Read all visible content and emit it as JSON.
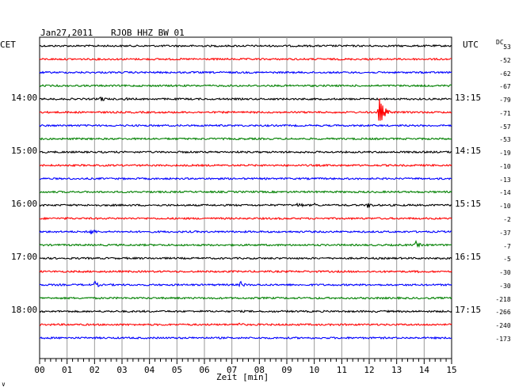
{
  "header": {
    "date": "Jan27,2011",
    "station": "RJOB HHZ BW 01",
    "left_tz": "CET",
    "right_tz": "UTC",
    "dc_label": "DC"
  },
  "footer": {
    "marker": "∨"
  },
  "chart_data": {
    "type": "line",
    "title": "",
    "xlabel": "Zeit [min]",
    "ylabel": "",
    "xlim": [
      0,
      15
    ],
    "x_ticks": [
      "00",
      "01",
      "02",
      "03",
      "04",
      "05",
      "06",
      "07",
      "08",
      "09",
      "10",
      "11",
      "12",
      "13",
      "14",
      "15"
    ],
    "grid": true,
    "trace_colors": [
      "#000000",
      "#ff0000",
      "#0000ff",
      "#008000"
    ],
    "left_hour_labels": [
      {
        "trace": 4,
        "label": "14:00"
      },
      {
        "trace": 8,
        "label": "15:00"
      },
      {
        "trace": 12,
        "label": "16:00"
      },
      {
        "trace": 16,
        "label": "17:00"
      },
      {
        "trace": 20,
        "label": "18:00"
      }
    ],
    "right_hour_labels": [
      {
        "trace": 4,
        "label": "13:15"
      },
      {
        "trace": 8,
        "label": "14:15"
      },
      {
        "trace": 12,
        "label": "15:15"
      },
      {
        "trace": 16,
        "label": "16:15"
      },
      {
        "trace": 20,
        "label": "17:15"
      }
    ],
    "dc_offsets": [
      "53",
      "-52",
      "-62",
      "-67",
      "-79",
      "-71",
      "-57",
      "-53",
      "-19",
      "-10",
      "-13",
      "-14",
      "-10",
      "-2",
      "-37",
      "-7",
      "-5",
      "-30",
      "-30",
      "-218",
      "-266",
      "-240",
      "-173"
    ],
    "events": [
      {
        "trace": 4,
        "minute": 2.2,
        "amplitude": 5
      },
      {
        "trace": 4,
        "minute": 3.1,
        "amplitude": 3
      },
      {
        "trace": 5,
        "minute": 12.35,
        "amplitude": 22
      },
      {
        "trace": 8,
        "minute": 1.8,
        "amplitude": 2
      },
      {
        "trace": 12,
        "minute": 9.4,
        "amplitude": 5
      },
      {
        "trace": 12,
        "minute": 10.0,
        "amplitude": 3
      },
      {
        "trace": 12,
        "minute": 11.95,
        "amplitude": 5
      },
      {
        "trace": 13,
        "minute": 1.0,
        "amplitude": 2
      },
      {
        "trace": 14,
        "minute": 1.85,
        "amplitude": 6
      },
      {
        "trace": 15,
        "minute": 13.7,
        "amplitude": 5
      },
      {
        "trace": 18,
        "minute": 2.0,
        "amplitude": 5
      },
      {
        "trace": 18,
        "minute": 7.3,
        "amplitude": 5
      },
      {
        "trace": 17,
        "minute": 13.8,
        "amplitude": 2
      },
      {
        "trace": 21,
        "minute": 7.2,
        "amplitude": 5
      }
    ]
  }
}
